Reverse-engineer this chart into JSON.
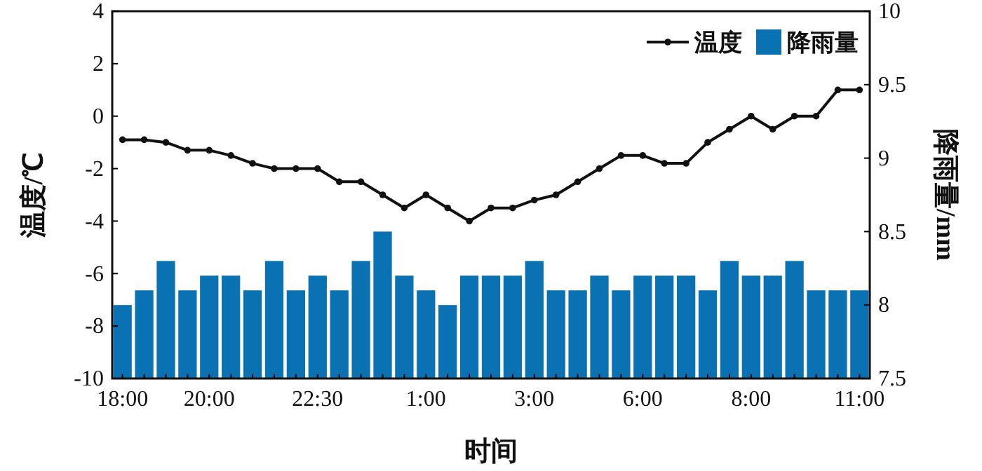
{
  "chart_data": {
    "type": "bar",
    "xlabel": "时间",
    "ylabel": "温度/℃",
    "y2label": "降雨量/mm",
    "categories": [
      "18:00",
      null,
      null,
      null,
      "20:00",
      null,
      null,
      null,
      null,
      "22:30",
      null,
      null,
      null,
      null,
      "1:00",
      null,
      null,
      null,
      null,
      "3:00",
      null,
      null,
      null,
      null,
      "6:00",
      null,
      null,
      null,
      null,
      "8:00",
      null,
      null,
      null,
      null,
      "11:00"
    ],
    "series": [
      {
        "name": "温度",
        "type": "line",
        "color": "#111111",
        "marker": "circle",
        "line_style": "solid",
        "values": [
          -0.9,
          -0.9,
          -1.0,
          -1.3,
          -1.3,
          -1.5,
          -1.8,
          -2.0,
          -2.0,
          -2.0,
          -2.5,
          -2.5,
          -3.0,
          -3.5,
          -3.0,
          -3.5,
          -4.0,
          -3.5,
          -3.5,
          -3.2,
          -3.0,
          -2.5,
          -2.0,
          -1.5,
          -1.5,
          -1.8,
          -1.8,
          -1.0,
          -0.5,
          0,
          -0.5,
          0,
          0,
          1.0,
          1.0
        ]
      },
      {
        "name": "降雨量",
        "axis": "y2",
        "color": "#0a72b3",
        "values": [
          8.0,
          8.1,
          8.3,
          8.1,
          8.2,
          8.2,
          8.1,
          8.3,
          8.1,
          8.2,
          8.1,
          8.3,
          8.5,
          8.2,
          8.1,
          8.0,
          8.2,
          8.2,
          8.2,
          8.3,
          8.1,
          8.1,
          8.2,
          8.1,
          8.2,
          8.2,
          8.2,
          8.1,
          8.3,
          8.2,
          8.2,
          8.3,
          8.1,
          8.1,
          8.1
        ]
      }
    ],
    "ylim": [
      -10,
      4
    ],
    "yticks": [
      -10,
      -8,
      -6,
      -4,
      -2,
      0,
      2,
      4
    ],
    "y2lim": [
      7.5,
      10
    ],
    "y2ticks": [
      7.5,
      8,
      8.5,
      9,
      9.5,
      10
    ],
    "legend": "top right",
    "grid": false
  }
}
